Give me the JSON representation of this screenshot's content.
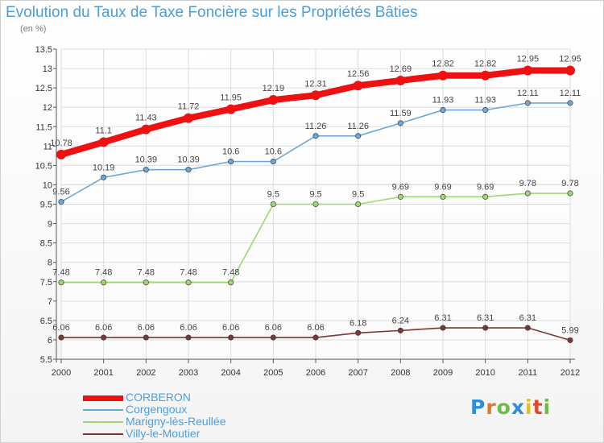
{
  "page": {
    "title": "Evolution du Taux de Taxe Foncière sur les Propriétés Bâties",
    "unit_label": "(en %)",
    "logo_text": "Proxiti"
  },
  "chart_data": {
    "type": "line",
    "title": "Evolution du Taux de Taxe Foncière sur les Propriétés Bâties",
    "ylabel": "(en %)",
    "xlabel": "",
    "x": [
      "2000",
      "2001",
      "2002",
      "2003",
      "2004",
      "2005",
      "2006",
      "2007",
      "2008",
      "2009",
      "2010",
      "2011",
      "2012"
    ],
    "ylim": [
      5.5,
      13.5
    ],
    "yticks": [
      "5.5",
      "6",
      "6.5",
      "7",
      "7.5",
      "8",
      "8.5",
      "9",
      "9.5",
      "10",
      "10.5",
      "11",
      "11.5",
      "12",
      "12.5",
      "13",
      "13.5"
    ],
    "grid": true,
    "legend_position": "bottom-left",
    "series": [
      {
        "name": "CORBERON",
        "color": "#ee1111",
        "values": [
          10.78,
          11.1,
          11.43,
          11.72,
          11.95,
          12.19,
          12.31,
          12.56,
          12.69,
          12.82,
          12.82,
          12.95,
          12.95
        ],
        "labels": [
          "10.78",
          "11.1",
          "11.43",
          "11.72",
          "11.95",
          "12.19",
          "12.31",
          "12.56",
          "12.69",
          "12.82",
          "12.82",
          "12.95",
          "12.95"
        ]
      },
      {
        "name": "Corgengoux",
        "color": "#6fa8d6",
        "values": [
          9.56,
          10.19,
          10.39,
          10.39,
          10.6,
          10.6,
          11.26,
          11.26,
          11.59,
          11.93,
          11.93,
          12.11,
          12.11
        ],
        "labels": [
          "9.56",
          "10.19",
          "10.39",
          "10.39",
          "10.6",
          "10.6",
          "11.26",
          "11.26",
          "11.59",
          "11.93",
          "11.93",
          "12.11",
          "12.11"
        ]
      },
      {
        "name": "Marigny-lès-Reullée",
        "color": "#9ed870",
        "values": [
          7.48,
          7.48,
          7.48,
          7.48,
          7.48,
          9.5,
          9.5,
          9.5,
          9.69,
          9.69,
          9.69,
          9.78,
          9.78
        ],
        "labels": [
          "7.48",
          "7.48",
          "7.48",
          "7.48",
          "7.48",
          "9.5",
          "9.5",
          "9.5",
          "9.69",
          "9.69",
          "9.69",
          "9.78",
          "9.78"
        ]
      },
      {
        "name": "Villy-le-Moutier",
        "color": "#7a3636",
        "values": [
          6.06,
          6.06,
          6.06,
          6.06,
          6.06,
          6.06,
          6.06,
          6.18,
          6.24,
          6.31,
          6.31,
          6.31,
          5.99
        ],
        "labels": [
          "6.06",
          "6.06",
          "6.06",
          "6.06",
          "6.06",
          "6.06",
          "6.06",
          "6.18",
          "6.24",
          "6.31",
          "6.31",
          "6.31",
          "5.99"
        ]
      }
    ]
  }
}
